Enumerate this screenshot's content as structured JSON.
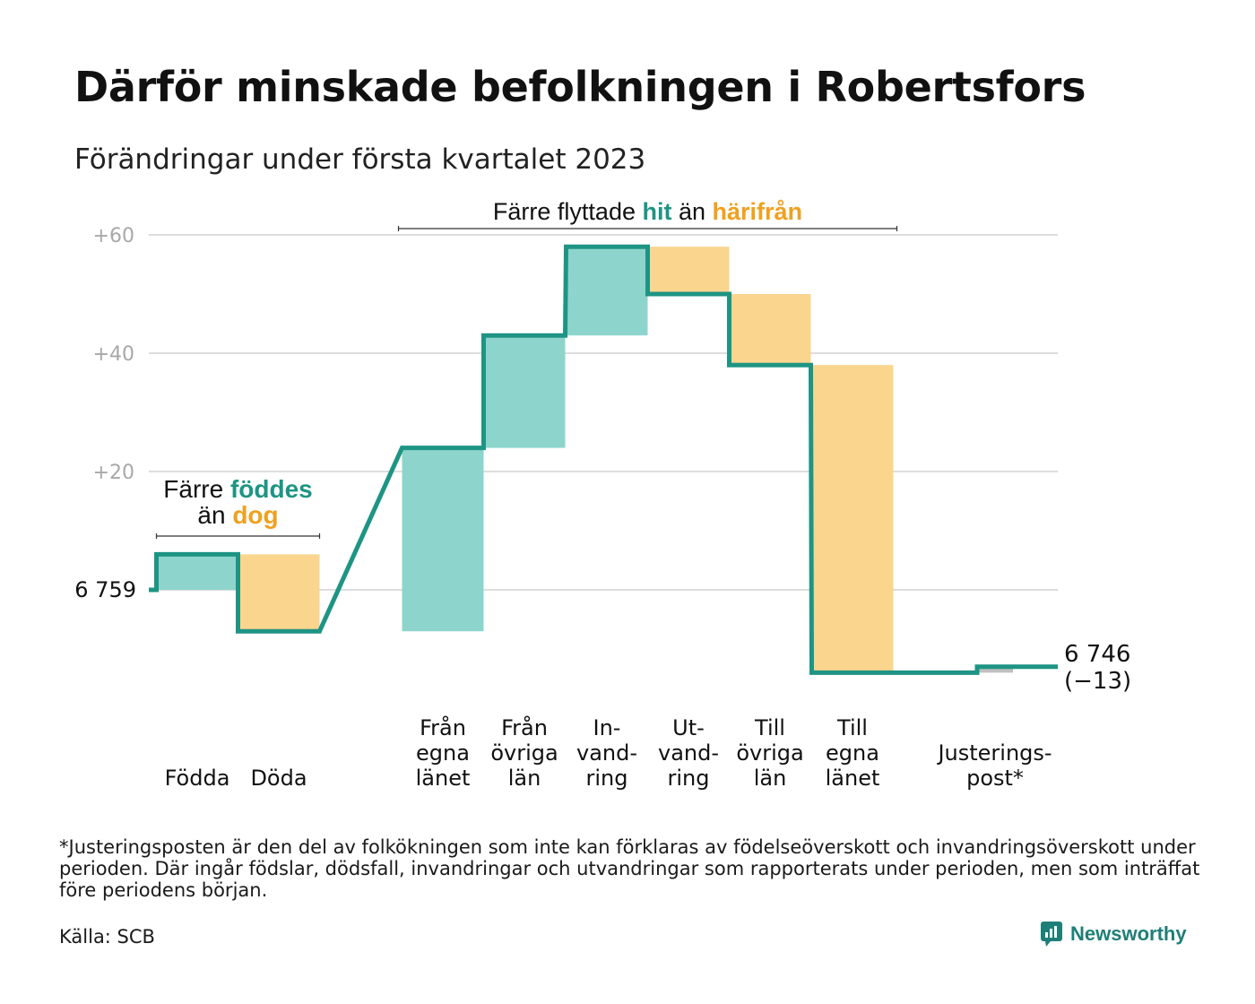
{
  "title": "Därför minskade befolkningen i Robertsfors",
  "subtitle": "Förändringar under första kvartalet 2023",
  "colors": {
    "line": "#1e9484",
    "increase": "#8dd5cc",
    "decrease": "#fad58e",
    "adjustment": "#bfbfbf",
    "grid": "#dddddd",
    "tick": "#a8a8a8",
    "hit": "#1e9484",
    "harifran": "#f0a020"
  },
  "chart_data": {
    "type": "waterfall",
    "start_value": 6759,
    "start_label": "6 759",
    "end_label_value": "6 746",
    "end_label_change": "(−13)",
    "ylim": [
      -16,
      62
    ],
    "y_ticks": [
      {
        "value": 20,
        "label": "+20"
      },
      {
        "value": 40,
        "label": "+40"
      },
      {
        "value": 60,
        "label": "+60"
      }
    ],
    "steps": [
      {
        "category": "Födda",
        "label_lines": [
          "Födda"
        ],
        "change": 6,
        "kind": "increase"
      },
      {
        "category": "Döda",
        "label_lines": [
          "Döda"
        ],
        "change": -13,
        "kind": "decrease"
      },
      {
        "category": "Från egna länet",
        "label_lines": [
          "Från",
          "egna",
          "länet"
        ],
        "change": 31,
        "kind": "increase"
      },
      {
        "category": "Från övriga län",
        "label_lines": [
          "Från",
          "övriga",
          "län"
        ],
        "change": 19,
        "kind": "increase"
      },
      {
        "category": "In-vand-ring",
        "label_lines": [
          "In-",
          "vand-",
          "ring"
        ],
        "change": 15,
        "kind": "increase"
      },
      {
        "category": "Ut-vand-ring",
        "label_lines": [
          "Ut-",
          "vand-",
          "ring"
        ],
        "change": -8,
        "kind": "decrease"
      },
      {
        "category": "Till övriga län",
        "label_lines": [
          "Till",
          "övriga",
          "län"
        ],
        "change": -12,
        "kind": "decrease"
      },
      {
        "category": "Till egna länet",
        "label_lines": [
          "Till",
          "egna",
          "länet"
        ],
        "change": -52,
        "kind": "decrease"
      },
      {
        "category": "Justerings-post*",
        "label_lines": [
          "Justerings-",
          "post*"
        ],
        "change": 1,
        "kind": "adjustment"
      }
    ],
    "annotations": [
      {
        "text_parts": [
          {
            "text": "Färre ",
            "color": "#111111",
            "bold": false
          },
          {
            "text": "föddes",
            "color": "#1e9484",
            "bold": true
          }
        ],
        "text_parts2": [
          {
            "text": "än ",
            "color": "#111111",
            "bold": false
          },
          {
            "text": "dog",
            "color": "#f0a020",
            "bold": true
          }
        ],
        "from_step": 0,
        "to_step": 1
      },
      {
        "text_parts": [
          {
            "text": "Färre flyttade ",
            "color": "#111111",
            "bold": false
          },
          {
            "text": "hit",
            "color": "#1e9484",
            "bold": true
          },
          {
            "text": " än ",
            "color": "#111111",
            "bold": false
          },
          {
            "text": "härifrån",
            "color": "#f0a020",
            "bold": true
          }
        ],
        "from_step": 2,
        "to_step": 7
      }
    ]
  },
  "footnote": "*Justeringsposten är den del av folkökningen som inte kan förklaras av födelseöverskott och invandringsöverskott under perioden. Där ingår födslar, dödsfall, invandringar och utvandringar som rapporterats under perioden, men som inträffat före periodens början.",
  "source": "Källa: SCB",
  "brand": {
    "name": "Newsworthy",
    "icon": "newsworthy-logo-icon"
  }
}
